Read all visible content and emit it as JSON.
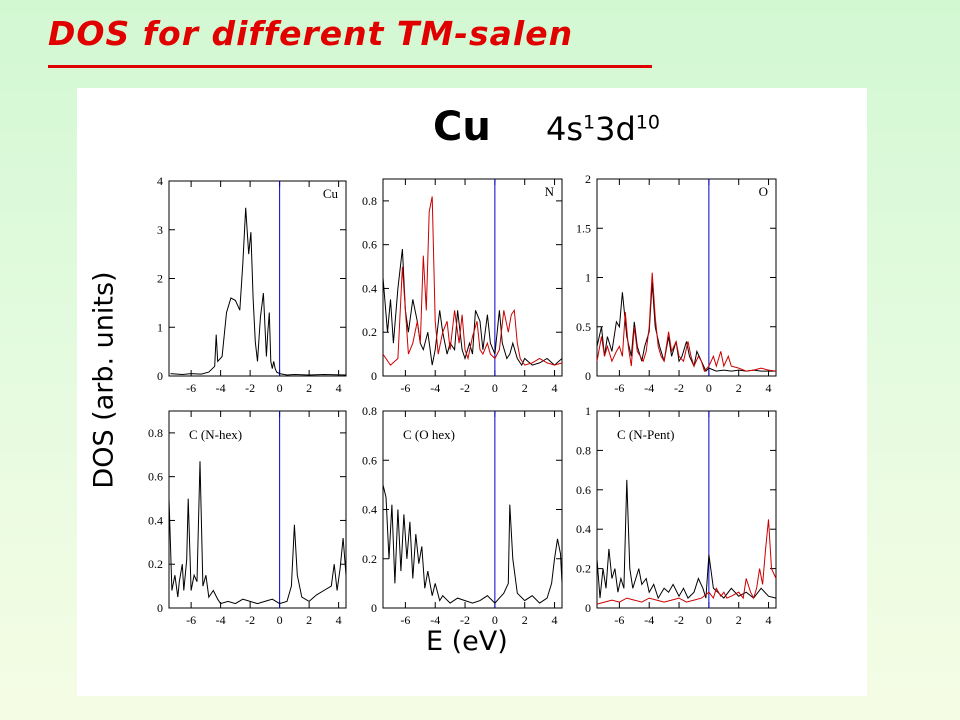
{
  "slide": {
    "title": "DOS for different TM-salen",
    "element": "Cu",
    "config_parts": [
      {
        "main": "4s",
        "sup": "1"
      },
      {
        "main": "3d",
        "sup": "10"
      }
    ],
    "ylabel": "DOS (arb. units)",
    "xlabel": "E (eV)"
  },
  "colors": {
    "title": "#e00000",
    "series_black": "#000000",
    "series_red": "#cc0000",
    "fermi_line": "#0000cc"
  },
  "chart_data": [
    {
      "type": "line",
      "title": "Cu",
      "xlabel": "",
      "ylabel": "",
      "xlim": [
        -7.5,
        4.5
      ],
      "ylim": [
        0,
        4
      ],
      "xticks": [
        -6,
        -4,
        -2,
        0,
        2,
        4
      ],
      "yticks": [
        0,
        1,
        2,
        3,
        4
      ],
      "ytick_labels": [
        "0",
        "1",
        "2",
        "3",
        "4"
      ],
      "fermi_level": 0,
      "series": [
        {
          "color": "#000000",
          "x": [
            -7.4,
            -6.6,
            -6,
            -5.3,
            -4.8,
            -4.4,
            -4.3,
            -4.2,
            -3.9,
            -3.6,
            -3.3,
            -3.0,
            -2.7,
            -2.5,
            -2.3,
            -2.1,
            -1.95,
            -1.8,
            -1.65,
            -1.5,
            -1.3,
            -1.1,
            -0.9,
            -0.8,
            -0.7,
            -0.6,
            -0.5,
            -0.4,
            -0.3,
            -0.2,
            0,
            0.5,
            1,
            2,
            3,
            4.5
          ],
          "y": [
            0.05,
            0.03,
            0.05,
            0.04,
            0.08,
            0.2,
            0.85,
            0.3,
            0.4,
            1.3,
            1.6,
            1.55,
            1.35,
            2.3,
            3.45,
            2.5,
            2.95,
            1.6,
            0.7,
            0.3,
            1.2,
            1.7,
            0.4,
            0.9,
            1.3,
            0.3,
            0.15,
            0.3,
            0.15,
            0.08,
            0.05,
            0.02,
            0.03,
            0.02,
            0.03,
            0.02
          ]
        }
      ]
    },
    {
      "type": "line",
      "title": "N",
      "xlabel": "",
      "ylabel": "",
      "xlim": [
        -7.5,
        4.5
      ],
      "ylim": [
        0,
        0.9
      ],
      "xticks": [
        -6,
        -4,
        -2,
        0,
        2,
        4
      ],
      "yticks": [
        0,
        0.2,
        0.4,
        0.6,
        0.8
      ],
      "ytick_labels": [
        "0",
        "0.2",
        "0.4",
        "0.6",
        "0.8"
      ],
      "fermi_level": 0,
      "series": [
        {
          "color": "#000000",
          "x": [
            -7.5,
            -7.2,
            -7,
            -6.8,
            -6.5,
            -6.2,
            -6,
            -5.8,
            -5.5,
            -5.2,
            -5,
            -4.8,
            -4.5,
            -4.2,
            -4,
            -3.7,
            -3.5,
            -3.2,
            -3,
            -2.7,
            -2.5,
            -2.2,
            -2,
            -1.7,
            -1.5,
            -1.3,
            -1,
            -0.8,
            -0.5,
            -0.3,
            0,
            0.3,
            0.5,
            0.8,
            1,
            1.2,
            1.5,
            1.8,
            2,
            2.5,
            3,
            3.5,
            4,
            4.5
          ],
          "y": [
            0.45,
            0.2,
            0.35,
            0.15,
            0.4,
            0.58,
            0.3,
            0.2,
            0.35,
            0.25,
            0.15,
            0.12,
            0.2,
            0.05,
            0.12,
            0.3,
            0.2,
            0.1,
            0.15,
            0.12,
            0.3,
            0.12,
            0.08,
            0.15,
            0.1,
            0.3,
            0.25,
            0.12,
            0.28,
            0.15,
            0.1,
            0.3,
            0.15,
            0.08,
            0.1,
            0.15,
            0.08,
            0.05,
            0.08,
            0.05,
            0.06,
            0.08,
            0.05,
            0.08
          ]
        },
        {
          "color": "#cc0000",
          "x": [
            -7.5,
            -7,
            -6.5,
            -6.2,
            -6,
            -5.8,
            -5.5,
            -5.2,
            -5,
            -4.8,
            -4.6,
            -4.4,
            -4.2,
            -4,
            -3.8,
            -3.5,
            -3.2,
            -3,
            -2.7,
            -2.4,
            -2.2,
            -2,
            -1.8,
            -1.5,
            -1.2,
            -1,
            -0.8,
            -0.5,
            -0.3,
            0,
            0.3,
            0.6,
            0.9,
            1.1,
            1.3,
            1.5,
            1.7,
            2,
            2.5,
            3,
            3.5,
            4,
            4.5
          ],
          "y": [
            0.1,
            0.05,
            0.08,
            0.5,
            0.3,
            0.1,
            0.15,
            0.25,
            0.15,
            0.55,
            0.3,
            0.75,
            0.82,
            0.25,
            0.1,
            0.2,
            0.25,
            0.12,
            0.3,
            0.15,
            0.28,
            0.12,
            0.08,
            0.18,
            0.25,
            0.12,
            0.1,
            0.15,
            0.1,
            0.08,
            0.12,
            0.3,
            0.2,
            0.28,
            0.3,
            0.15,
            0.08,
            0.05,
            0.06,
            0.08,
            0.06,
            0.05,
            0.06
          ]
        }
      ]
    },
    {
      "type": "line",
      "title": "O",
      "xlabel": "",
      "ylabel": "",
      "xlim": [
        -7.5,
        4.5
      ],
      "ylim": [
        0,
        2
      ],
      "xticks": [
        -6,
        -4,
        -2,
        0,
        2,
        4
      ],
      "yticks": [
        0,
        0.5,
        1,
        1.5,
        2
      ],
      "ytick_labels": [
        "0",
        "0.5",
        "1",
        "1.5",
        "2"
      ],
      "fermi_level": 0,
      "series": [
        {
          "color": "#000000",
          "x": [
            -7.5,
            -7.2,
            -7,
            -6.8,
            -6.5,
            -6.2,
            -6,
            -5.8,
            -5.5,
            -5.2,
            -5,
            -4.8,
            -4.5,
            -4.3,
            -4,
            -3.8,
            -3.6,
            -3.3,
            -3,
            -2.7,
            -2.5,
            -2.2,
            -2,
            -1.8,
            -1.5,
            -1.3,
            -1,
            -0.8,
            -0.5,
            -0.2,
            0,
            0.5,
            1,
            1.5,
            2,
            2.5,
            3,
            3.5,
            4,
            4.5
          ],
          "y": [
            0.3,
            0.5,
            0.2,
            0.4,
            0.25,
            0.55,
            0.5,
            0.85,
            0.4,
            0.2,
            0.55,
            0.3,
            0.15,
            0.3,
            0.45,
            0.95,
            0.5,
            0.3,
            0.15,
            0.4,
            0.2,
            0.35,
            0.15,
            0.2,
            0.35,
            0.2,
            0.1,
            0.25,
            0.15,
            0.05,
            0.08,
            0.05,
            0.06,
            0.05,
            0.06,
            0.05,
            0.06,
            0.05,
            0.05,
            0.05
          ]
        },
        {
          "color": "#cc0000",
          "x": [
            -7.5,
            -7.2,
            -7,
            -6.8,
            -6.5,
            -6.2,
            -6,
            -5.8,
            -5.6,
            -5.4,
            -5.2,
            -5,
            -4.8,
            -4.6,
            -4.4,
            -4.2,
            -4,
            -3.8,
            -3.6,
            -3.4,
            -3.2,
            -3,
            -2.7,
            -2.5,
            -2.2,
            -2,
            -1.7,
            -1.4,
            -1.2,
            -1,
            -0.7,
            -0.5,
            -0.3,
            0,
            0.3,
            0.5,
            0.8,
            1,
            1.3,
            1.5,
            2,
            2.5,
            3,
            3.5,
            4,
            4.5
          ],
          "y": [
            0.15,
            0.4,
            0.2,
            0.3,
            0.15,
            0.25,
            0.3,
            0.2,
            0.65,
            0.3,
            0.1,
            0.5,
            0.25,
            0.2,
            0.15,
            0.25,
            0.5,
            1.05,
            0.6,
            0.3,
            0.2,
            0.15,
            0.45,
            0.25,
            0.35,
            0.2,
            0.15,
            0.35,
            0.2,
            0.1,
            0.2,
            0.15,
            0.05,
            0.1,
            0.2,
            0.1,
            0.25,
            0.1,
            0.2,
            0.1,
            0.08,
            0.05,
            0.06,
            0.08,
            0.06,
            0.05
          ]
        }
      ]
    },
    {
      "type": "line",
      "title": "C (N-hex)",
      "xlabel": "",
      "ylabel": "",
      "xlim": [
        -7.5,
        4.5
      ],
      "ylim": [
        0,
        0.9
      ],
      "xticks": [
        -6,
        -4,
        -2,
        0,
        2,
        4
      ],
      "yticks": [
        0,
        0.2,
        0.4,
        0.6,
        0.8
      ],
      "ytick_labels": [
        "0",
        "0.2",
        "0.4",
        "0.6",
        "0.8"
      ],
      "fermi_level": 0,
      "series": [
        {
          "color": "#000000",
          "x": [
            -7.5,
            -7.3,
            -7.1,
            -6.9,
            -6.8,
            -6.6,
            -6.5,
            -6.3,
            -6.2,
            -6,
            -5.8,
            -5.6,
            -5.4,
            -5.2,
            -5,
            -4.8,
            -4.5,
            -4.2,
            -4,
            -3.5,
            -3,
            -2.5,
            -2,
            -1.5,
            -1,
            -0.5,
            0,
            0.5,
            0.8,
            1.0,
            1.2,
            1.5,
            2,
            2.5,
            3,
            3.5,
            3.7,
            3.9,
            4.1,
            4.3,
            4.5
          ],
          "y": [
            0.5,
            0.08,
            0.15,
            0.05,
            0.12,
            0.2,
            0.08,
            0.22,
            0.5,
            0.08,
            0.15,
            0.12,
            0.67,
            0.1,
            0.15,
            0.05,
            0.08,
            0.04,
            0.02,
            0.03,
            0.02,
            0.04,
            0.03,
            0.02,
            0.03,
            0.04,
            0.02,
            0.03,
            0.1,
            0.38,
            0.15,
            0.05,
            0.03,
            0.06,
            0.08,
            0.1,
            0.2,
            0.08,
            0.18,
            0.32,
            0.15
          ]
        }
      ]
    },
    {
      "type": "line",
      "title": "C (O hex)",
      "xlabel": "",
      "ylabel": "",
      "xlim": [
        -7.5,
        4.5
      ],
      "ylim": [
        0,
        0.8
      ],
      "xticks": [
        -6,
        -4,
        -2,
        0,
        2,
        4
      ],
      "yticks": [
        0,
        0.2,
        0.4,
        0.6,
        0.8
      ],
      "ytick_labels": [
        "0",
        "0.2",
        "0.4",
        "0.6",
        "0.8"
      ],
      "fermi_level": 0,
      "series": [
        {
          "color": "#000000",
          "x": [
            -7.5,
            -7.3,
            -7.1,
            -6.9,
            -6.7,
            -6.5,
            -6.3,
            -6.1,
            -5.9,
            -5.7,
            -5.5,
            -5.3,
            -5.1,
            -4.9,
            -4.7,
            -4.5,
            -4.2,
            -4,
            -3.7,
            -3.5,
            -3,
            -2.5,
            -2,
            -1.5,
            -1,
            -0.5,
            0,
            0.3,
            0.6,
            0.9,
            1.0,
            1.2,
            1.5,
            2,
            2.5,
            3,
            3.5,
            3.8,
            4,
            4.2,
            4.4,
            4.5
          ],
          "y": [
            0.5,
            0.45,
            0.2,
            0.42,
            0.1,
            0.4,
            0.15,
            0.38,
            0.2,
            0.35,
            0.12,
            0.3,
            0.18,
            0.25,
            0.08,
            0.15,
            0.05,
            0.1,
            0.03,
            0.05,
            0.02,
            0.04,
            0.03,
            0.02,
            0.03,
            0.05,
            0.02,
            0.04,
            0.06,
            0.1,
            0.42,
            0.2,
            0.06,
            0.03,
            0.05,
            0.02,
            0.04,
            0.1,
            0.2,
            0.28,
            0.22,
            0.1
          ]
        }
      ]
    },
    {
      "type": "line",
      "title": "C (N-Pent)",
      "xlabel": "",
      "ylabel": "",
      "xlim": [
        -7.5,
        4.5
      ],
      "ylim": [
        0,
        1
      ],
      "xticks": [
        -6,
        -4,
        -2,
        0,
        2,
        4
      ],
      "yticks": [
        0,
        0.2,
        0.4,
        0.6,
        0.8,
        1
      ],
      "ytick_labels": [
        "0",
        "0.2",
        "0.4",
        "0.6",
        "0.8",
        "1"
      ],
      "fermi_level": 0,
      "series": [
        {
          "color": "#000000",
          "x": [
            -7.5,
            -7.3,
            -7.1,
            -6.9,
            -6.7,
            -6.5,
            -6.3,
            -6.1,
            -5.9,
            -5.7,
            -5.5,
            -5.3,
            -5.1,
            -4.9,
            -4.7,
            -4.5,
            -4.2,
            -4,
            -3.7,
            -3.4,
            -3,
            -2.7,
            -2.4,
            -2,
            -1.7,
            -1.4,
            -1,
            -0.7,
            -0.4,
            -0.2,
            0,
            0.3,
            0.6,
            1,
            1.5,
            2,
            2.5,
            3,
            3.5,
            4,
            4.5
          ],
          "y": [
            0.25,
            0.05,
            0.2,
            0.1,
            0.3,
            0.15,
            0.2,
            0.08,
            0.15,
            0.1,
            0.65,
            0.2,
            0.1,
            0.15,
            0.2,
            0.12,
            0.15,
            0.08,
            0.12,
            0.05,
            0.1,
            0.08,
            0.12,
            0.06,
            0.1,
            0.05,
            0.08,
            0.15,
            0.1,
            0.05,
            0.27,
            0.1,
            0.08,
            0.05,
            0.1,
            0.06,
            0.08,
            0.05,
            0.1,
            0.06,
            0.05
          ]
        },
        {
          "color": "#cc0000",
          "x": [
            -7.5,
            -7,
            -6.5,
            -6,
            -5.5,
            -5,
            -4.5,
            -4,
            -3.5,
            -3,
            -2.5,
            -2,
            -1.5,
            -1,
            -0.5,
            0,
            0.3,
            0.5,
            0.8,
            1,
            1.2,
            1.5,
            2,
            2.3,
            2.5,
            2.8,
            3,
            3.2,
            3.4,
            3.6,
            3.8,
            4,
            4.2,
            4.5
          ],
          "y": [
            0.02,
            0.03,
            0.04,
            0.03,
            0.05,
            0.04,
            0.03,
            0.05,
            0.04,
            0.03,
            0.04,
            0.05,
            0.03,
            0.04,
            0.05,
            0.08,
            0.05,
            0.1,
            0.06,
            0.08,
            0.05,
            0.06,
            0.08,
            0.05,
            0.15,
            0.08,
            0.05,
            0.1,
            0.2,
            0.12,
            0.3,
            0.45,
            0.2,
            0.15
          ]
        }
      ]
    }
  ]
}
